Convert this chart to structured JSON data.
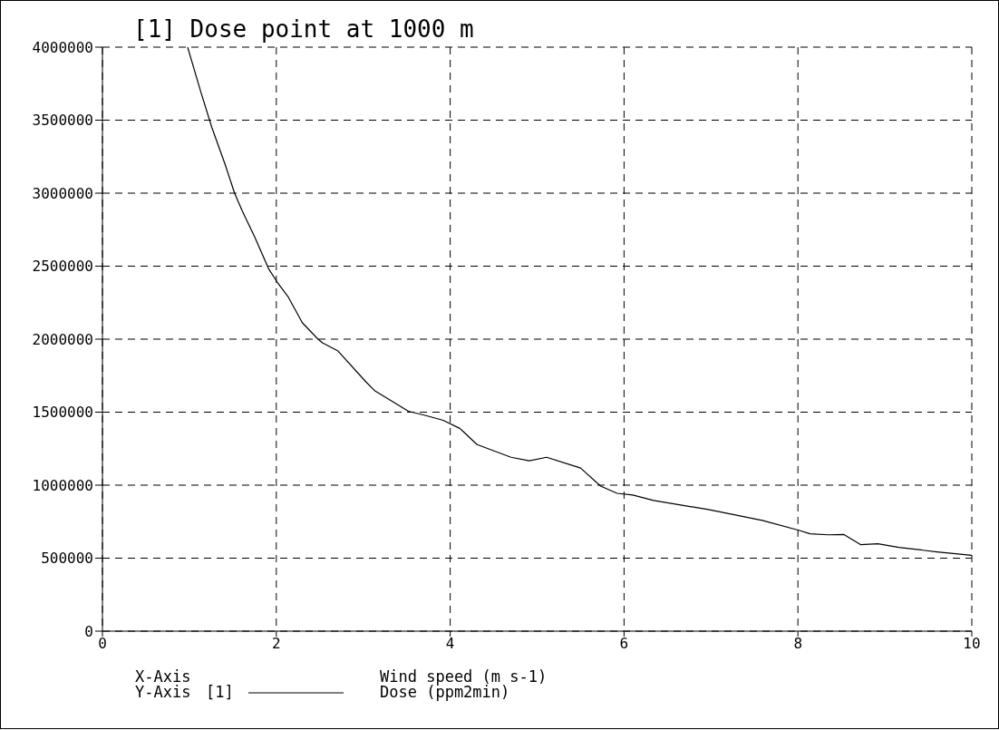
{
  "chart_data": {
    "type": "line",
    "title": "[1] Dose point at 1000 m",
    "xlabel": "Wind speed (m s-1)",
    "annotations": [
      "X-Axis",
      "Y-Axis",
      "Dose (ppm2min)"
    ],
    "x": [
      0.98,
      1.13,
      1.26,
      1.41,
      1.52,
      1.61,
      1.75,
      1.91,
      2.01,
      2.14,
      2.3,
      2.48,
      2.53,
      2.71,
      3.03,
      3.13,
      3.52,
      3.73,
      3.92,
      4.11,
      4.31,
      4.7,
      4.91,
      5.11,
      5.5,
      5.73,
      5.92,
      6.1,
      6.34,
      6.65,
      6.97,
      7.59,
      8.01,
      8.14,
      8.35,
      8.53,
      8.72,
      8.92,
      9.16,
      9.6,
      10.0
    ],
    "series": [
      {
        "name": "[1]",
        "color": "#000000",
        "values": [
          4000000,
          3696000,
          3447000,
          3199000,
          3000000,
          2876000,
          2702000,
          2484000,
          2391000,
          2286000,
          2112000,
          2000000,
          1975000,
          1919000,
          1708000,
          1648000,
          1506000,
          1475000,
          1444000,
          1389000,
          1278000,
          1191000,
          1167000,
          1191000,
          1117000,
          994000,
          944000,
          932000,
          895000,
          864000,
          833000,
          759000,
          691000,
          667000,
          660000,
          662000,
          593000,
          599000,
          574000,
          543000,
          519000
        ]
      }
    ],
    "xlim": [
      0,
      10
    ],
    "xticks": [
      0,
      2,
      4,
      6,
      8,
      10
    ],
    "ylim": [
      0,
      4000000
    ],
    "yticks": [
      0,
      500000,
      1000000,
      1500000,
      2000000,
      2500000,
      3000000,
      3500000,
      4000000
    ],
    "grid": true,
    "legend": "bottom"
  }
}
